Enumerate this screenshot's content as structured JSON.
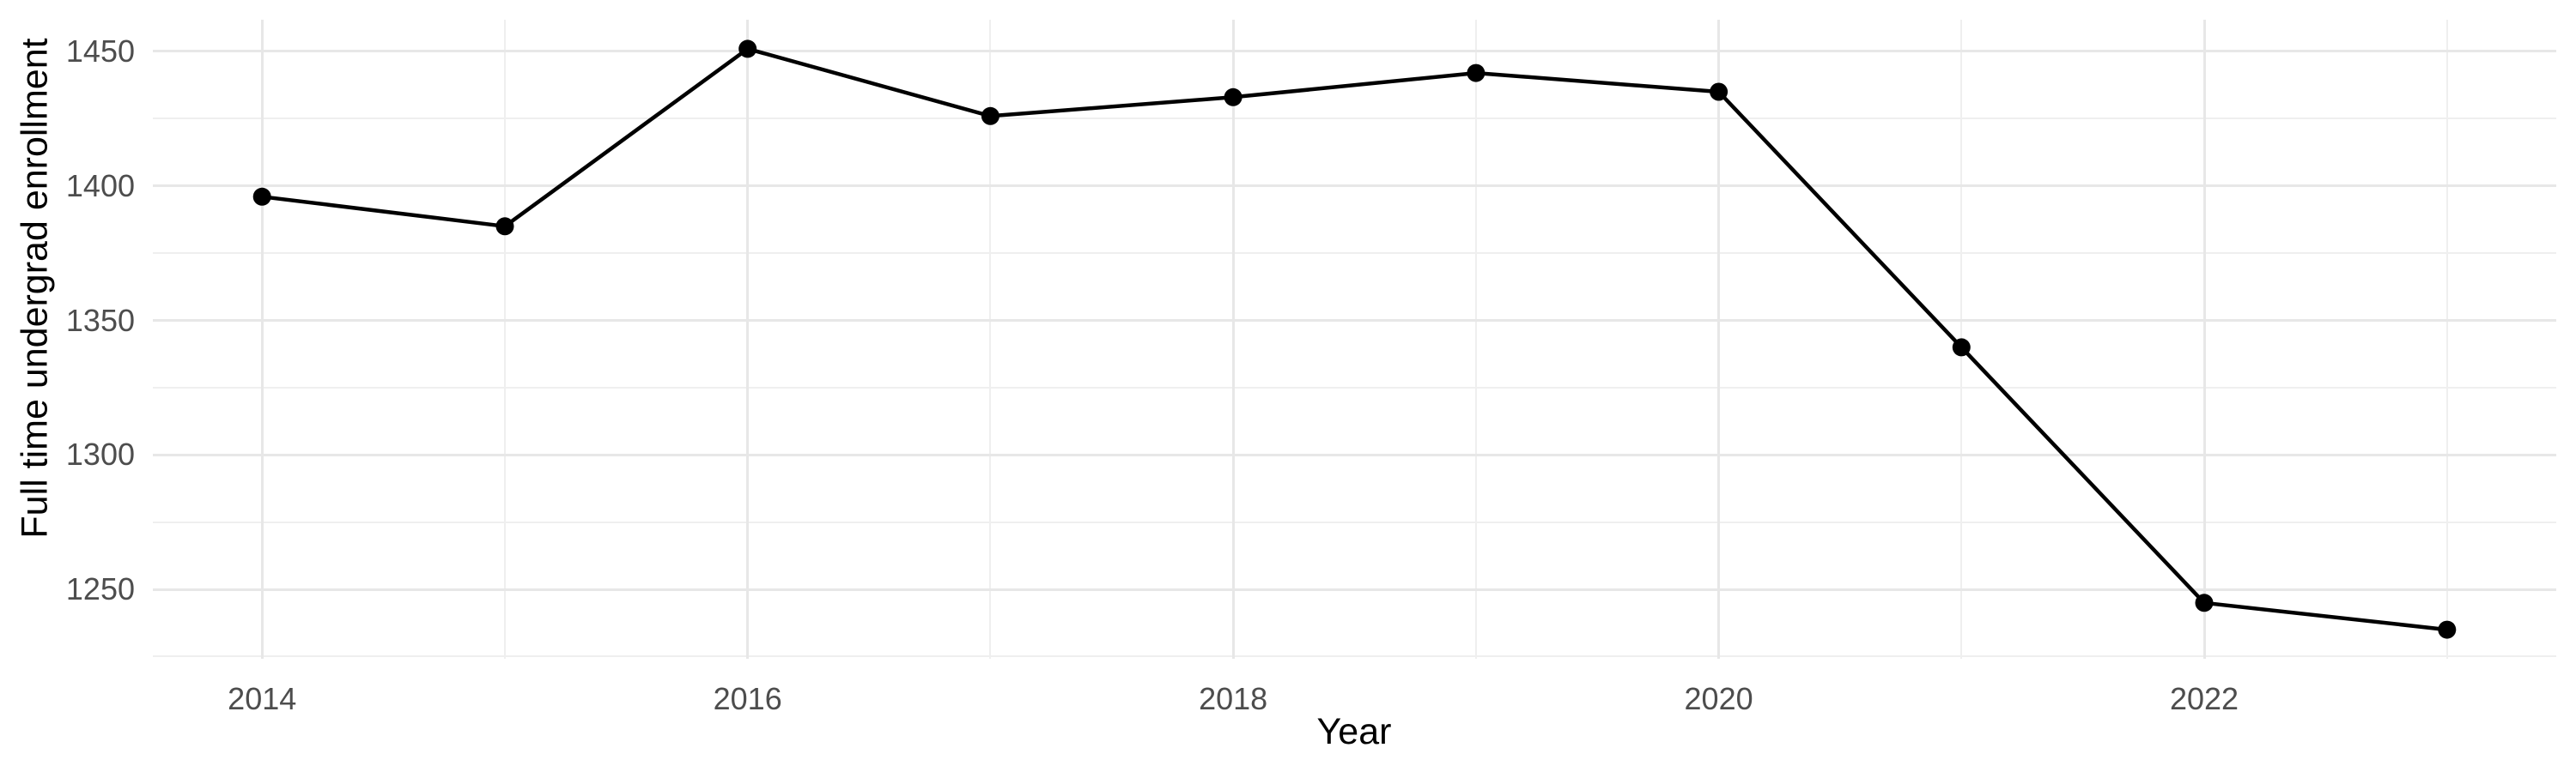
{
  "chart_data": {
    "type": "line",
    "title": "",
    "xlabel": "Year",
    "ylabel": "Full time undergrad enrollment",
    "series_name": "Full time undergrad enrollment",
    "x": [
      2014,
      2015,
      2016,
      2017,
      2018,
      2019,
      2020,
      2021,
      2022,
      2023
    ],
    "values": [
      1396,
      1385,
      1451,
      1426,
      1433,
      1442,
      1435,
      1340,
      1245,
      1235
    ],
    "xlim": [
      2013.55,
      2023.45
    ],
    "ylim": [
      1224.2,
      1461.8
    ],
    "x_major_ticks": [
      2014,
      2016,
      2018,
      2020,
      2022
    ],
    "x_tick_labels": [
      "2014",
      "2016",
      "2018",
      "2020",
      "2022"
    ],
    "x_minor_ticks": [
      2015,
      2017,
      2019,
      2021,
      2023
    ],
    "y_major_ticks": [
      1250,
      1300,
      1350,
      1400,
      1450
    ],
    "y_tick_labels": [
      "1250",
      "1300",
      "1350",
      "1400",
      "1450"
    ],
    "y_minor_ticks": [
      1225,
      1275,
      1325,
      1375,
      1425
    ],
    "grid": "major-and-minor",
    "legend": "none",
    "marker": "filled-circle",
    "style": {
      "line_color": "#000000",
      "point_color": "#000000",
      "grid_major_color": "#E7E7E7",
      "grid_minor_color": "#EFEFEF",
      "tick_label_color": "#4D4D4D",
      "axis_title_color": "#000000",
      "background_color": "#FFFFFF"
    }
  }
}
